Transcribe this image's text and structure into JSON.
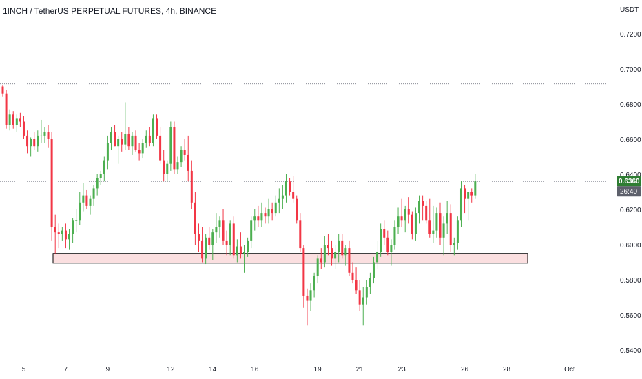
{
  "header": {
    "title": "1INCH / TetherUS PERPETUAL FUTURES, 4h, BINANCE"
  },
  "chart_data": {
    "type": "candlestick",
    "title": "1INCH / TetherUS PERPETUAL FUTURES, 4h, BINANCE",
    "currency_label": "USDT",
    "ylim": [
      0.54,
      0.73
    ],
    "y_ticks": [
      {
        "value": 0.72,
        "label": "0.7200"
      },
      {
        "value": 0.7,
        "label": "0.7000"
      },
      {
        "value": 0.68,
        "label": "0.6800"
      },
      {
        "value": 0.66,
        "label": "0.6600"
      },
      {
        "value": 0.64,
        "label": "0.6400"
      },
      {
        "value": 0.62,
        "label": "0.6200"
      },
      {
        "value": 0.6,
        "label": "0.6000"
      },
      {
        "value": 0.58,
        "label": "0.5800"
      },
      {
        "value": 0.56,
        "label": "0.5600"
      },
      {
        "value": 0.54,
        "label": "0.5400"
      }
    ],
    "x_ticks": [
      {
        "label": "5",
        "candle": 6
      },
      {
        "label": "7",
        "candle": 18
      },
      {
        "label": "9",
        "candle": 30
      },
      {
        "label": "12",
        "candle": 48
      },
      {
        "label": "14",
        "candle": 60
      },
      {
        "label": "16",
        "candle": 72
      },
      {
        "label": "19",
        "candle": 90
      },
      {
        "label": "21",
        "candle": 102
      },
      {
        "label": "23",
        "candle": 114
      },
      {
        "label": "26",
        "candle": 132
      },
      {
        "label": "28",
        "candle": 144
      },
      {
        "label": "Oct",
        "candle": 162
      }
    ],
    "current_price": {
      "value": 0.636,
      "label": "0.6360",
      "countdown": "26:40"
    },
    "high_line": 0.6915,
    "support_zone": [
      0.5895,
      0.595
    ],
    "colors": {
      "up": "#4caf50",
      "down": "#f23645",
      "zone_fill": "#fbdfe0",
      "zone_stroke": "#000000",
      "price_tag": "#2e7d32",
      "countdown_tag": "#5d606b"
    },
    "candles": [
      [
        0.69,
        0.691,
        0.684,
        0.686
      ],
      [
        0.686,
        0.688,
        0.666,
        0.668
      ],
      [
        0.668,
        0.677,
        0.665,
        0.674
      ],
      [
        0.674,
        0.676,
        0.666,
        0.668
      ],
      [
        0.668,
        0.674,
        0.664,
        0.672
      ],
      [
        0.672,
        0.675,
        0.667,
        0.67
      ],
      [
        0.67,
        0.673,
        0.66,
        0.662
      ],
      [
        0.662,
        0.665,
        0.652,
        0.656
      ],
      [
        0.656,
        0.661,
        0.65,
        0.66
      ],
      [
        0.66,
        0.664,
        0.654,
        0.656
      ],
      [
        0.656,
        0.665,
        0.653,
        0.662
      ],
      [
        0.662,
        0.671,
        0.658,
        0.662
      ],
      [
        0.662,
        0.667,
        0.658,
        0.664
      ],
      [
        0.664,
        0.668,
        0.655,
        0.66
      ],
      [
        0.66,
        0.664,
        0.602,
        0.61
      ],
      [
        0.61,
        0.617,
        0.595,
        0.607
      ],
      [
        0.607,
        0.612,
        0.598,
        0.606
      ],
      [
        0.606,
        0.61,
        0.602,
        0.608
      ],
      [
        0.608,
        0.612,
        0.598,
        0.603
      ],
      [
        0.603,
        0.609,
        0.597,
        0.606
      ],
      [
        0.606,
        0.615,
        0.601,
        0.614
      ],
      [
        0.614,
        0.62,
        0.607,
        0.614
      ],
      [
        0.614,
        0.63,
        0.611,
        0.624
      ],
      [
        0.624,
        0.635,
        0.619,
        0.628
      ],
      [
        0.628,
        0.631,
        0.62,
        0.622
      ],
      [
        0.622,
        0.628,
        0.617,
        0.626
      ],
      [
        0.626,
        0.634,
        0.622,
        0.632
      ],
      [
        0.632,
        0.64,
        0.628,
        0.638
      ],
      [
        0.638,
        0.642,
        0.634,
        0.64
      ],
      [
        0.64,
        0.65,
        0.636,
        0.648
      ],
      [
        0.648,
        0.662,
        0.643,
        0.658
      ],
      [
        0.658,
        0.667,
        0.654,
        0.664
      ],
      [
        0.664,
        0.668,
        0.656,
        0.656
      ],
      [
        0.656,
        0.662,
        0.646,
        0.66
      ],
      [
        0.66,
        0.664,
        0.653,
        0.657
      ],
      [
        0.657,
        0.681,
        0.654,
        0.663
      ],
      [
        0.663,
        0.667,
        0.654,
        0.656
      ],
      [
        0.656,
        0.664,
        0.651,
        0.662
      ],
      [
        0.662,
        0.665,
        0.653,
        0.654
      ],
      [
        0.654,
        0.658,
        0.648,
        0.652
      ],
      [
        0.652,
        0.66,
        0.649,
        0.658
      ],
      [
        0.658,
        0.665,
        0.655,
        0.662
      ],
      [
        0.662,
        0.667,
        0.656,
        0.658
      ],
      [
        0.658,
        0.674,
        0.656,
        0.672
      ],
      [
        0.672,
        0.674,
        0.66,
        0.662
      ],
      [
        0.662,
        0.667,
        0.646,
        0.648
      ],
      [
        0.648,
        0.654,
        0.636,
        0.64
      ],
      [
        0.64,
        0.648,
        0.636,
        0.646
      ],
      [
        0.646,
        0.67,
        0.642,
        0.667
      ],
      [
        0.667,
        0.67,
        0.64,
        0.643
      ],
      [
        0.643,
        0.65,
        0.64,
        0.647
      ],
      [
        0.647,
        0.656,
        0.644,
        0.654
      ],
      [
        0.654,
        0.66,
        0.648,
        0.651
      ],
      [
        0.651,
        0.662,
        0.636,
        0.642
      ],
      [
        0.642,
        0.648,
        0.62,
        0.624
      ],
      [
        0.624,
        0.63,
        0.6,
        0.606
      ],
      [
        0.606,
        0.612,
        0.596,
        0.602
      ],
      [
        0.602,
        0.61,
        0.59,
        0.592
      ],
      [
        0.592,
        0.606,
        0.589,
        0.604
      ],
      [
        0.604,
        0.61,
        0.597,
        0.6
      ],
      [
        0.6,
        0.609,
        0.591,
        0.607
      ],
      [
        0.607,
        0.618,
        0.601,
        0.61
      ],
      [
        0.61,
        0.616,
        0.604,
        0.614
      ],
      [
        0.614,
        0.62,
        0.6,
        0.602
      ],
      [
        0.602,
        0.608,
        0.594,
        0.6
      ],
      [
        0.6,
        0.614,
        0.594,
        0.612
      ],
      [
        0.612,
        0.616,
        0.592,
        0.594
      ],
      [
        0.594,
        0.603,
        0.59,
        0.599
      ],
      [
        0.599,
        0.607,
        0.592,
        0.595
      ],
      [
        0.595,
        0.6,
        0.584,
        0.596
      ],
      [
        0.596,
        0.604,
        0.593,
        0.602
      ],
      [
        0.602,
        0.616,
        0.598,
        0.614
      ],
      [
        0.614,
        0.62,
        0.608,
        0.616
      ],
      [
        0.616,
        0.622,
        0.61,
        0.614
      ],
      [
        0.614,
        0.624,
        0.61,
        0.618
      ],
      [
        0.618,
        0.621,
        0.612,
        0.616
      ],
      [
        0.616,
        0.626,
        0.612,
        0.62
      ],
      [
        0.62,
        0.624,
        0.614,
        0.618
      ],
      [
        0.618,
        0.628,
        0.616,
        0.624
      ],
      [
        0.624,
        0.632,
        0.618,
        0.626
      ],
      [
        0.626,
        0.634,
        0.62,
        0.628
      ],
      [
        0.628,
        0.64,
        0.624,
        0.636
      ],
      [
        0.636,
        0.638,
        0.628,
        0.63
      ],
      [
        0.63,
        0.639,
        0.624,
        0.626
      ],
      [
        0.626,
        0.628,
        0.612,
        0.614
      ],
      [
        0.614,
        0.618,
        0.596,
        0.598
      ],
      [
        0.598,
        0.6,
        0.564,
        0.571
      ],
      [
        0.571,
        0.575,
        0.554,
        0.568
      ],
      [
        0.568,
        0.578,
        0.562,
        0.574
      ],
      [
        0.574,
        0.584,
        0.57,
        0.582
      ],
      [
        0.582,
        0.594,
        0.578,
        0.592
      ],
      [
        0.592,
        0.598,
        0.586,
        0.59
      ],
      [
        0.59,
        0.605,
        0.587,
        0.6
      ],
      [
        0.6,
        0.606,
        0.594,
        0.598
      ],
      [
        0.598,
        0.602,
        0.588,
        0.592
      ],
      [
        0.592,
        0.6,
        0.586,
        0.596
      ],
      [
        0.596,
        0.606,
        0.59,
        0.602
      ],
      [
        0.602,
        0.606,
        0.592,
        0.594
      ],
      [
        0.594,
        0.6,
        0.588,
        0.598
      ],
      [
        0.598,
        0.602,
        0.582,
        0.584
      ],
      [
        0.584,
        0.59,
        0.578,
        0.58
      ],
      [
        0.58,
        0.587,
        0.572,
        0.574
      ],
      [
        0.574,
        0.58,
        0.562,
        0.566
      ],
      [
        0.566,
        0.576,
        0.554,
        0.57
      ],
      [
        0.57,
        0.58,
        0.566,
        0.576
      ],
      [
        0.576,
        0.584,
        0.572,
        0.581
      ],
      [
        0.581,
        0.593,
        0.578,
        0.59
      ],
      [
        0.59,
        0.602,
        0.586,
        0.596
      ],
      [
        0.596,
        0.612,
        0.593,
        0.609
      ],
      [
        0.609,
        0.614,
        0.6,
        0.604
      ],
      [
        0.604,
        0.608,
        0.594,
        0.596
      ],
      [
        0.596,
        0.603,
        0.588,
        0.6
      ],
      [
        0.6,
        0.614,
        0.597,
        0.61
      ],
      [
        0.61,
        0.621,
        0.606,
        0.616
      ],
      [
        0.616,
        0.626,
        0.61,
        0.614
      ],
      [
        0.614,
        0.622,
        0.607,
        0.62
      ],
      [
        0.62,
        0.627,
        0.612,
        0.617
      ],
      [
        0.617,
        0.619,
        0.603,
        0.606
      ],
      [
        0.606,
        0.621,
        0.602,
        0.618
      ],
      [
        0.618,
        0.628,
        0.612,
        0.625
      ],
      [
        0.625,
        0.628,
        0.614,
        0.622
      ],
      [
        0.622,
        0.625,
        0.612,
        0.614
      ],
      [
        0.614,
        0.626,
        0.604,
        0.606
      ],
      [
        0.606,
        0.622,
        0.601,
        0.608
      ],
      [
        0.608,
        0.621,
        0.604,
        0.618
      ],
      [
        0.618,
        0.624,
        0.6,
        0.604
      ],
      [
        0.604,
        0.616,
        0.594,
        0.612
      ],
      [
        0.612,
        0.625,
        0.606,
        0.618
      ],
      [
        0.618,
        0.623,
        0.596,
        0.6
      ],
      [
        0.6,
        0.604,
        0.594,
        0.601
      ],
      [
        0.601,
        0.616,
        0.597,
        0.614
      ],
      [
        0.614,
        0.636,
        0.61,
        0.632
      ],
      [
        0.632,
        0.634,
        0.618,
        0.626
      ],
      [
        0.626,
        0.63,
        0.614,
        0.63
      ],
      [
        0.63,
        0.632,
        0.624,
        0.628
      ],
      [
        0.628,
        0.64,
        0.626,
        0.636
      ]
    ]
  }
}
